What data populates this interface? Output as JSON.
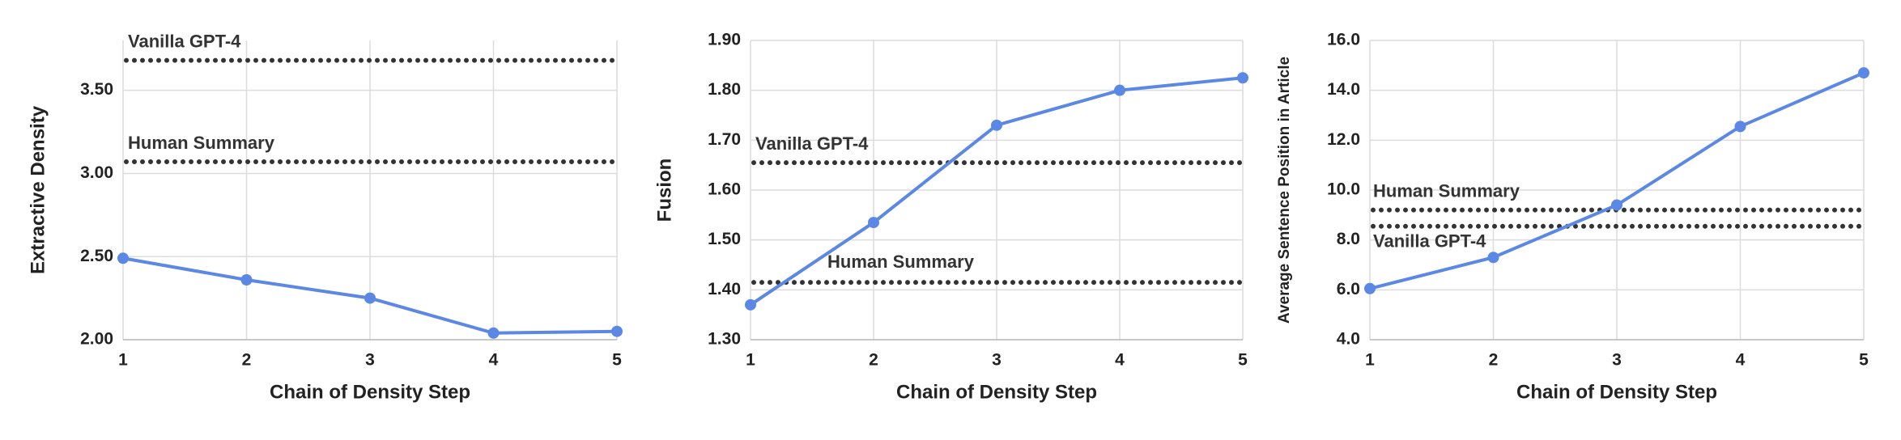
{
  "chart_data": [
    {
      "type": "line",
      "x_label": "Chain of Density Step",
      "y_label": "Extractive Density",
      "x": [
        1,
        2,
        3,
        4,
        5
      ],
      "xlim": [
        1,
        5
      ],
      "xticks": [
        1,
        2,
        3,
        4,
        5
      ],
      "ylim": [
        2.0,
        3.8
      ],
      "yticks": [
        {
          "value": 2.0,
          "label": "2.00"
        },
        {
          "value": 2.5,
          "label": "2.50"
        },
        {
          "value": 3.0,
          "label": "3.00"
        },
        {
          "value": 3.5,
          "label": "3.50"
        }
      ],
      "grid": true,
      "series": [
        {
          "color": "#5b87e5",
          "values": [
            2.49,
            2.36,
            2.25,
            2.04,
            2.05
          ]
        }
      ],
      "reference_lines": [
        {
          "name": "Vanilla GPT-4",
          "value": 3.68,
          "color": "#333333"
        },
        {
          "name": "Human Summary",
          "value": 3.07,
          "color": "#333333"
        }
      ]
    },
    {
      "type": "line",
      "x_label": "Chain of Density Step",
      "y_label": "Fusion",
      "x": [
        1,
        2,
        3,
        4,
        5
      ],
      "xlim": [
        1,
        5
      ],
      "xticks": [
        1,
        2,
        3,
        4,
        5
      ],
      "ylim": [
        1.3,
        1.9
      ],
      "yticks": [
        {
          "value": 1.3,
          "label": "1.30"
        },
        {
          "value": 1.4,
          "label": "1.40"
        },
        {
          "value": 1.5,
          "label": "1.50"
        },
        {
          "value": 1.6,
          "label": "1.60"
        },
        {
          "value": 1.7,
          "label": "1.70"
        },
        {
          "value": 1.8,
          "label": "1.80"
        },
        {
          "value": 1.9,
          "label": "1.90"
        }
      ],
      "grid": true,
      "series": [
        {
          "color": "#5b87e5",
          "values": [
            1.37,
            1.535,
            1.73,
            1.8,
            1.825
          ]
        }
      ],
      "reference_lines": [
        {
          "name": "Vanilla GPT-4",
          "value": 1.655,
          "color": "#333333"
        },
        {
          "name": "Human Summary",
          "value": 1.415,
          "color": "#333333"
        }
      ]
    },
    {
      "type": "line",
      "x_label": "Chain of Density Step",
      "y_label": "Average Sentence Position in Article",
      "x": [
        1,
        2,
        3,
        4,
        5
      ],
      "xlim": [
        1,
        5
      ],
      "xticks": [
        1,
        2,
        3,
        4,
        5
      ],
      "ylim": [
        4,
        16
      ],
      "yticks": [
        {
          "value": 4,
          "label": "4.0"
        },
        {
          "value": 6,
          "label": "6.0"
        },
        {
          "value": 8,
          "label": "8.0"
        },
        {
          "value": 10,
          "label": "10.0"
        },
        {
          "value": 12,
          "label": "12.0"
        },
        {
          "value": 14,
          "label": "14.0"
        },
        {
          "value": 16,
          "label": "16.0"
        }
      ],
      "grid": true,
      "series": [
        {
          "color": "#5b87e5",
          "values": [
            6.05,
            7.3,
            9.4,
            12.55,
            14.7
          ]
        }
      ],
      "reference_lines": [
        {
          "name": "Human Summary",
          "value": 9.2,
          "color": "#333333"
        },
        {
          "name": "Vanilla GPT-4",
          "value": 8.55,
          "color": "#333333"
        }
      ]
    }
  ]
}
